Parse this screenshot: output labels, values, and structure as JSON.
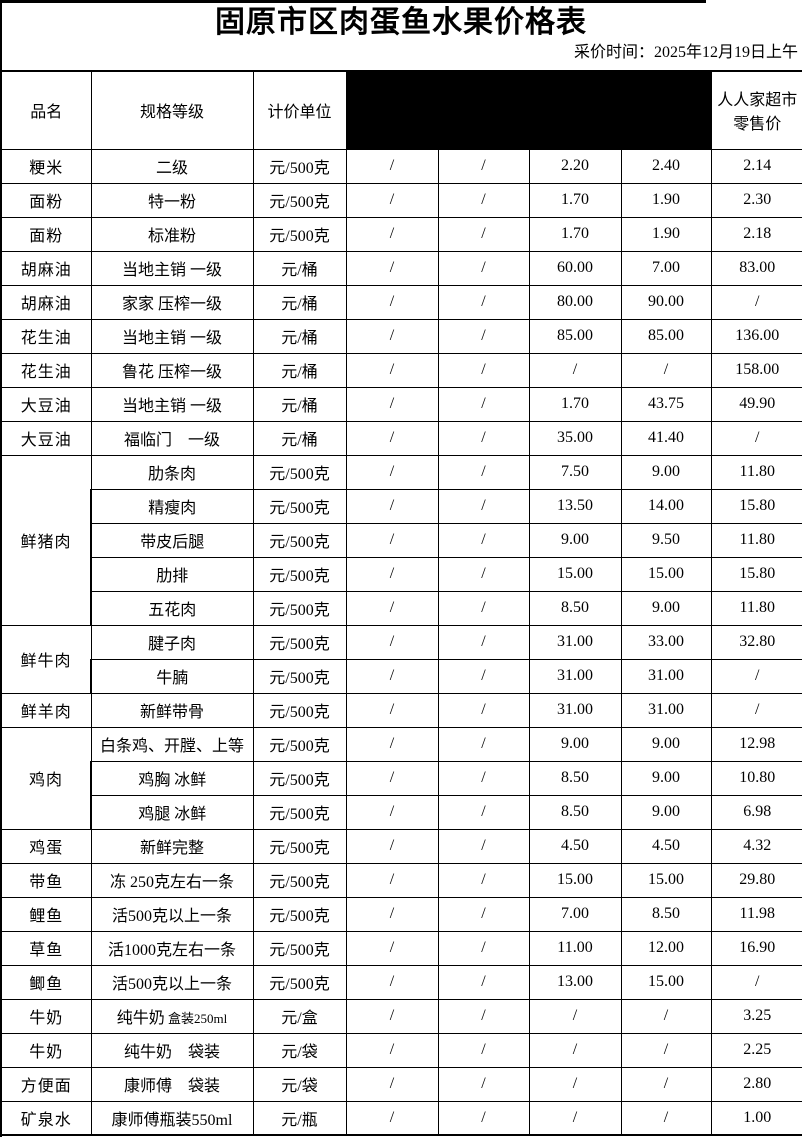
{
  "page": {
    "title": "固原市区肉蛋鱼水果价格表",
    "collect_time": "采价时间：2025年12月19日上午"
  },
  "colors": {
    "text": "#000000",
    "border": "#000000",
    "redaction": "#000000",
    "background": "#ffffff"
  },
  "table": {
    "headers": {
      "col_name": "品名",
      "col_spec": "规格等级",
      "col_unit": "计价单位",
      "col_redacted": "",
      "col_market_line1": "人人家超市",
      "col_market_line2": "零售价"
    },
    "rows": [
      {
        "name": "粳米",
        "name_rowspan": 1,
        "spec": "二级",
        "unit": "元/500克",
        "values": [
          "/",
          "/",
          "2.20",
          "2.40",
          "2.14"
        ]
      },
      {
        "name": "面粉",
        "name_rowspan": 1,
        "spec": "特一粉",
        "unit": "元/500克",
        "values": [
          "/",
          "/",
          "1.70",
          "1.90",
          "2.30"
        ]
      },
      {
        "name": "面粉",
        "name_rowspan": 1,
        "spec": "标准粉",
        "unit": "元/500克",
        "values": [
          "/",
          "/",
          "1.70",
          "1.90",
          "2.18"
        ]
      },
      {
        "name": "胡麻油",
        "name_rowspan": 1,
        "spec": "当地主销 一级",
        "unit": "元/桶",
        "values": [
          "/",
          "/",
          "60.00",
          "7.00",
          "83.00"
        ]
      },
      {
        "name": "胡麻油",
        "name_rowspan": 1,
        "spec": "家家 压榨一级",
        "unit": "元/桶",
        "values": [
          "/",
          "/",
          "80.00",
          "90.00",
          "/"
        ]
      },
      {
        "name": "花生油",
        "name_rowspan": 1,
        "spec": "当地主销 一级",
        "unit": "元/桶",
        "values": [
          "/",
          "/",
          "85.00",
          "85.00",
          "136.00"
        ]
      },
      {
        "name": "花生油",
        "name_rowspan": 1,
        "spec": "鲁花 压榨一级",
        "unit": "元/桶",
        "values": [
          "/",
          "/",
          "/",
          "/",
          "158.00"
        ]
      },
      {
        "name": "大豆油",
        "name_rowspan": 1,
        "spec": "当地主销 一级",
        "unit": "元/桶",
        "values": [
          "/",
          "/",
          "1.70",
          "43.75",
          "49.90"
        ]
      },
      {
        "name": "大豆油",
        "name_rowspan": 1,
        "spec": "福临门　一级",
        "unit": "元/桶",
        "values": [
          "/",
          "/",
          "35.00",
          "41.40",
          "/"
        ]
      },
      {
        "name": "鲜猪肉",
        "name_rowspan": 5,
        "spec": "肋条肉",
        "unit": "元/500克",
        "values": [
          "/",
          "/",
          "7.50",
          "9.00",
          "11.80"
        ]
      },
      {
        "spec": "精瘦肉",
        "unit": "元/500克",
        "values": [
          "/",
          "/",
          "13.50",
          "14.00",
          "15.80"
        ]
      },
      {
        "spec": "带皮后腿",
        "unit": "元/500克",
        "values": [
          "/",
          "/",
          "9.00",
          "9.50",
          "11.80"
        ]
      },
      {
        "spec": "肋排",
        "unit": "元/500克",
        "values": [
          "/",
          "/",
          "15.00",
          "15.00",
          "15.80"
        ]
      },
      {
        "spec": "五花肉",
        "unit": "元/500克",
        "values": [
          "/",
          "/",
          "8.50",
          "9.00",
          "11.80"
        ]
      },
      {
        "name": "鲜牛肉",
        "name_rowspan": 2,
        "spec": "腱子肉",
        "unit": "元/500克",
        "values": [
          "/",
          "/",
          "31.00",
          "33.00",
          "32.80"
        ]
      },
      {
        "spec": "牛腩",
        "unit": "元/500克",
        "values": [
          "/",
          "/",
          "31.00",
          "31.00",
          "/"
        ]
      },
      {
        "name": "鲜羊肉",
        "name_rowspan": 1,
        "spec": "新鲜带骨",
        "unit": "元/500克",
        "values": [
          "/",
          "/",
          "31.00",
          "31.00",
          "/"
        ]
      },
      {
        "name": "鸡肉",
        "name_rowspan": 3,
        "spec": "白条鸡、开膛、上等",
        "unit": "元/500克",
        "values": [
          "/",
          "/",
          "9.00",
          "9.00",
          "12.98"
        ]
      },
      {
        "spec": "鸡胸 冰鲜",
        "unit": "元/500克",
        "values": [
          "/",
          "/",
          "8.50",
          "9.00",
          "10.80"
        ]
      },
      {
        "spec": "鸡腿 冰鲜",
        "unit": "元/500克",
        "values": [
          "/",
          "/",
          "8.50",
          "9.00",
          "6.98"
        ]
      },
      {
        "name": "鸡蛋",
        "name_rowspan": 1,
        "spec": "新鲜完整",
        "unit": "元/500克",
        "values": [
          "/",
          "/",
          "4.50",
          "4.50",
          "4.32"
        ]
      },
      {
        "name": "带鱼",
        "name_rowspan": 1,
        "spec": "冻 250克左右一条",
        "unit": "元/500克",
        "values": [
          "/",
          "/",
          "15.00",
          "15.00",
          "29.80"
        ]
      },
      {
        "name": "鲤鱼",
        "name_rowspan": 1,
        "spec": "活500克以上一条",
        "unit": "元/500克",
        "values": [
          "/",
          "/",
          "7.00",
          "8.50",
          "11.98"
        ]
      },
      {
        "name": "草鱼",
        "name_rowspan": 1,
        "spec": "活1000克左右一条",
        "unit": "元/500克",
        "values": [
          "/",
          "/",
          "11.00",
          "12.00",
          "16.90"
        ]
      },
      {
        "name": "鲫鱼",
        "name_rowspan": 1,
        "spec": "活500克以上一条",
        "unit": "元/500克",
        "values": [
          "/",
          "/",
          "13.00",
          "15.00",
          "/"
        ]
      },
      {
        "name": "牛奶",
        "name_rowspan": 1,
        "spec": "纯牛奶",
        "spec_small": "盒装250ml",
        "unit": "元/盒",
        "values": [
          "/",
          "/",
          "/",
          "/",
          "3.25"
        ]
      },
      {
        "name": "牛奶",
        "name_rowspan": 1,
        "spec": "纯牛奶　袋装",
        "unit": "元/袋",
        "values": [
          "/",
          "/",
          "/",
          "/",
          "2.25"
        ]
      },
      {
        "name": "方便面",
        "name_rowspan": 1,
        "spec": "康师傅　袋装",
        "unit": "元/袋",
        "values": [
          "/",
          "/",
          "/",
          "/",
          "2.80"
        ]
      },
      {
        "name": "矿泉水",
        "name_rowspan": 1,
        "spec": "康师傅瓶装550ml",
        "unit": "元/瓶",
        "values": [
          "/",
          "/",
          "/",
          "/",
          "1.00"
        ]
      }
    ]
  }
}
